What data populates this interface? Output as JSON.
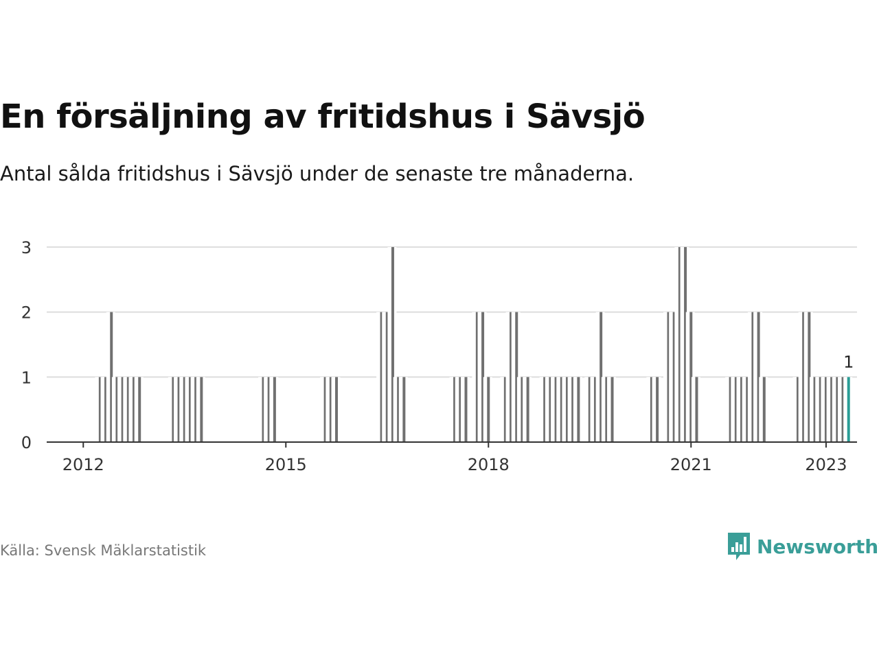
{
  "title": "En försäljning av fritidshus i Sävsjö",
  "subtitle": "Antal sålda fritidshus i Sävsjö under de senaste tre månaderna.",
  "source": "Källa: Svensk Mäklarstatistik",
  "brand": {
    "name": "Newsworthy",
    "icon": "newsworthy-chart-bubble-icon"
  },
  "colors": {
    "bar": "#707070",
    "highlight": "#2a9d96",
    "grid": "#dddddd",
    "axis": "#333333",
    "brand": "#3a9e98"
  },
  "chart_data": {
    "type": "bar",
    "ylim": [
      0,
      3
    ],
    "yticks": [
      0,
      1,
      2,
      3
    ],
    "xtick_labels": [
      "2012",
      "2015",
      "2018",
      "2021",
      "2023"
    ],
    "xtick_values": [
      "2012-01",
      "2015-01",
      "2018-01",
      "2021-01",
      "2023-01"
    ],
    "x_range": [
      "2011-07",
      "2023-06"
    ],
    "grid": true,
    "highlight_label": "1",
    "series": [
      {
        "x": "2012-04",
        "value": 1
      },
      {
        "x": "2012-05",
        "value": 1
      },
      {
        "x": "2012-06",
        "value": 2
      },
      {
        "x": "2012-07",
        "value": 1
      },
      {
        "x": "2012-08",
        "value": 1
      },
      {
        "x": "2012-09",
        "value": 1
      },
      {
        "x": "2012-10",
        "value": 1
      },
      {
        "x": "2012-11",
        "value": 1
      },
      {
        "x": "2013-05",
        "value": 1
      },
      {
        "x": "2013-06",
        "value": 1
      },
      {
        "x": "2013-07",
        "value": 1
      },
      {
        "x": "2013-08",
        "value": 1
      },
      {
        "x": "2013-09",
        "value": 1
      },
      {
        "x": "2013-10",
        "value": 1
      },
      {
        "x": "2014-09",
        "value": 1
      },
      {
        "x": "2014-10",
        "value": 1
      },
      {
        "x": "2014-11",
        "value": 1
      },
      {
        "x": "2015-08",
        "value": 1
      },
      {
        "x": "2015-09",
        "value": 1
      },
      {
        "x": "2015-10",
        "value": 1
      },
      {
        "x": "2016-06",
        "value": 2
      },
      {
        "x": "2016-07",
        "value": 2
      },
      {
        "x": "2016-08",
        "value": 3
      },
      {
        "x": "2016-09",
        "value": 1
      },
      {
        "x": "2016-10",
        "value": 1
      },
      {
        "x": "2017-07",
        "value": 1
      },
      {
        "x": "2017-08",
        "value": 1
      },
      {
        "x": "2017-09",
        "value": 1
      },
      {
        "x": "2017-11",
        "value": 2
      },
      {
        "x": "2017-12",
        "value": 2
      },
      {
        "x": "2018-01",
        "value": 1
      },
      {
        "x": "2018-04",
        "value": 1
      },
      {
        "x": "2018-05",
        "value": 2
      },
      {
        "x": "2018-06",
        "value": 2
      },
      {
        "x": "2018-07",
        "value": 1
      },
      {
        "x": "2018-08",
        "value": 1
      },
      {
        "x": "2018-11",
        "value": 1
      },
      {
        "x": "2018-12",
        "value": 1
      },
      {
        "x": "2019-01",
        "value": 1
      },
      {
        "x": "2019-02",
        "value": 1
      },
      {
        "x": "2019-03",
        "value": 1
      },
      {
        "x": "2019-04",
        "value": 1
      },
      {
        "x": "2019-05",
        "value": 1
      },
      {
        "x": "2019-07",
        "value": 1
      },
      {
        "x": "2019-08",
        "value": 1
      },
      {
        "x": "2019-09",
        "value": 2
      },
      {
        "x": "2019-10",
        "value": 1
      },
      {
        "x": "2019-11",
        "value": 1
      },
      {
        "x": "2020-06",
        "value": 1
      },
      {
        "x": "2020-07",
        "value": 1
      },
      {
        "x": "2020-09",
        "value": 2
      },
      {
        "x": "2020-10",
        "value": 2
      },
      {
        "x": "2020-11",
        "value": 3
      },
      {
        "x": "2020-12",
        "value": 3
      },
      {
        "x": "2021-01",
        "value": 2
      },
      {
        "x": "2021-02",
        "value": 1
      },
      {
        "x": "2021-08",
        "value": 1
      },
      {
        "x": "2021-09",
        "value": 1
      },
      {
        "x": "2021-10",
        "value": 1
      },
      {
        "x": "2021-11",
        "value": 1
      },
      {
        "x": "2021-12",
        "value": 2
      },
      {
        "x": "2022-01",
        "value": 2
      },
      {
        "x": "2022-02",
        "value": 1
      },
      {
        "x": "2022-08",
        "value": 1
      },
      {
        "x": "2022-09",
        "value": 2
      },
      {
        "x": "2022-10",
        "value": 2
      },
      {
        "x": "2022-11",
        "value": 1
      },
      {
        "x": "2022-12",
        "value": 1
      },
      {
        "x": "2023-01",
        "value": 1
      },
      {
        "x": "2023-02",
        "value": 1
      },
      {
        "x": "2023-03",
        "value": 1
      },
      {
        "x": "2023-04",
        "value": 1
      },
      {
        "x": "2023-05",
        "value": 1,
        "highlight": true
      }
    ]
  }
}
